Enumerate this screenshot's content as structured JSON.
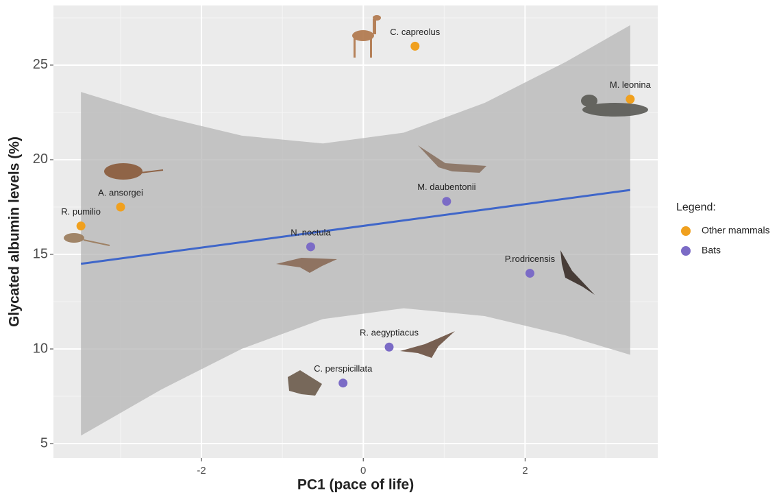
{
  "chart_data": {
    "type": "scatter",
    "xlabel": "PC1 (pace of life)",
    "ylabel": "Glycated albumin levels (%)",
    "xlim": [
      -3.83,
      3.64
    ],
    "ylim": [
      4.24,
      28.15
    ],
    "xticks": [
      -2,
      0,
      2
    ],
    "yticks": [
      5,
      10,
      15,
      20,
      25
    ],
    "xminor": [
      -3,
      -1,
      1,
      3
    ],
    "yminor": [
      7.5,
      12.5,
      17.5,
      22.5,
      27.5
    ],
    "grid": true,
    "legend_title": "Legend:",
    "legend_position": "right",
    "series": [
      {
        "name": "Other mammals",
        "color": "#f0a01e",
        "labels": [
          "C. capreolus",
          "M. leonina",
          "A. ansorgei",
          "R. pumilio"
        ],
        "x": [
          0.64,
          3.3,
          -3.0,
          -3.49
        ],
        "values": [
          26.0,
          23.2,
          17.5,
          16.5
        ]
      },
      {
        "name": "Bats",
        "color": "#7b6bc6",
        "labels": [
          "M. daubentonii",
          "N. noctula",
          "P.rodricensis",
          "R. aegyptiacus",
          "C. perspicillata"
        ],
        "x": [
          1.03,
          -0.65,
          2.06,
          0.32,
          -0.25
        ],
        "values": [
          17.8,
          15.4,
          14.0,
          10.1,
          8.2
        ]
      }
    ],
    "fit": {
      "color": "#3f66c9",
      "x": [
        -3.49,
        3.3
      ],
      "values": [
        14.5,
        18.4
      ]
    },
    "band": {
      "color": "#b5b5b5",
      "x": [
        -3.49,
        -2.5,
        -1.5,
        -0.5,
        0.5,
        1.5,
        2.5,
        3.3
      ],
      "lower": [
        5.42,
        7.85,
        10.01,
        11.58,
        12.15,
        11.74,
        10.72,
        9.69
      ],
      "upper": [
        23.58,
        22.29,
        21.27,
        20.86,
        21.43,
        23.0,
        25.16,
        27.11
      ]
    }
  }
}
